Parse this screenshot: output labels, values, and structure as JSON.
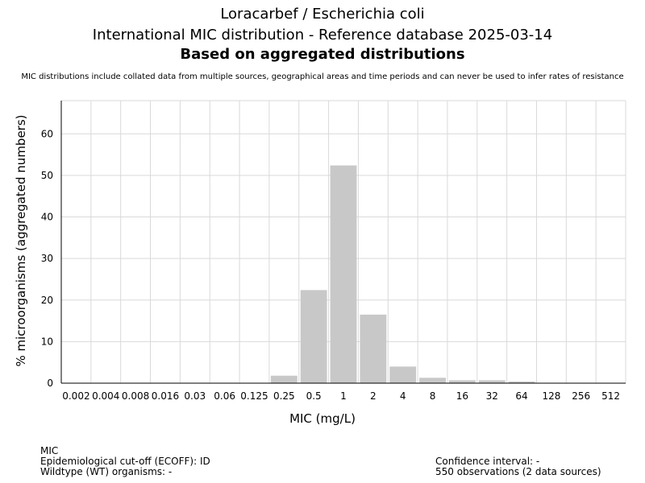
{
  "header": {
    "title_line1": "Loracarbef / Escherichia coli",
    "title_line2": "International MIC distribution - Reference database 2025-03-14",
    "title_line3": "Based on aggregated distributions",
    "note": "MIC distributions include collated data from multiple sources, geographical areas and time periods and can never be used to infer rates of resistance"
  },
  "chart_data": {
    "type": "bar",
    "categories": [
      "0.002",
      "0.004",
      "0.008",
      "0.016",
      "0.03",
      "0.06",
      "0.125",
      "0.25",
      "0.5",
      "1",
      "2",
      "4",
      "8",
      "16",
      "32",
      "64",
      "128",
      "256",
      "512"
    ],
    "values": [
      0,
      0,
      0,
      0,
      0,
      0,
      0,
      1.8,
      22.4,
      52.4,
      16.5,
      4.0,
      1.3,
      0.7,
      0.7,
      0.4,
      0,
      0,
      0.1
    ],
    "xlabel": "MIC (mg/L)",
    "ylabel": "% microorganisms (aggregated numbers)",
    "ylim": [
      0,
      68
    ],
    "yticks": [
      0,
      10,
      20,
      30,
      40,
      50,
      60
    ],
    "grid": true,
    "bar_color": "#c8c8c8"
  },
  "footer": {
    "left_line1": "MIC",
    "left_line2": "Epidemiological cut-off (ECOFF): ID",
    "left_line3": "Wildtype (WT) organisms:  -",
    "right_line1": "Confidence interval: -",
    "right_line2": "550 observations (2 data sources)"
  }
}
